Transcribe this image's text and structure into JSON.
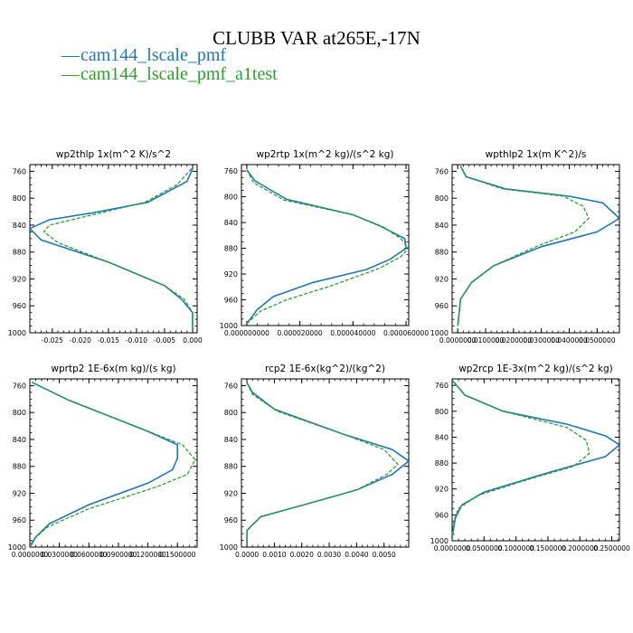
{
  "figure": {
    "title": "CLUBB VAR at265E,-17N",
    "legend": [
      {
        "name": "cam144_lscale_pmf",
        "color": "#1f77b4",
        "style": "solid"
      },
      {
        "name": "cam144_lscale_pmf_a1test",
        "color": "#2ca02c",
        "style": "dashed"
      }
    ]
  },
  "chart_data": [
    {
      "type": "line",
      "title": "wp2thlp   1x(m^2 K)/s^2",
      "y_ticks": [
        760,
        800,
        840,
        880,
        920,
        960,
        1000
      ],
      "ylim": [
        1000,
        750
      ],
      "xlim": [
        -0.029,
        0.0008
      ],
      "x_ticks": [
        -0.025,
        -0.02,
        -0.015,
        -0.01,
        -0.005,
        0.0
      ],
      "x_tick_labels": [
        "-0.025",
        "-0.020",
        "-0.015",
        "-0.010",
        "-0.005",
        "0.000"
      ],
      "series": [
        {
          "name": "cam144_lscale_pmf",
          "color": "#1f77b4",
          "dash": false,
          "x": [
            0.0,
            -0.001,
            -0.008,
            -0.018,
            -0.0255,
            -0.029,
            -0.027,
            -0.015,
            -0.005,
            -0.002,
            0.0,
            0.0
          ],
          "y": [
            756,
            775,
            806,
            822,
            832,
            845,
            862,
            895,
            930,
            950,
            970,
            995
          ]
        },
        {
          "name": "cam144_lscale_pmf_a1test",
          "color": "#2ca02c",
          "dash": true,
          "x": [
            -0.0002,
            -0.0028,
            -0.0085,
            -0.018,
            -0.0255,
            -0.0265,
            -0.024,
            -0.015,
            -0.005,
            -0.0015,
            0.0,
            0.0
          ],
          "y": [
            756,
            780,
            806,
            825,
            840,
            850,
            866,
            895,
            930,
            950,
            970,
            995
          ]
        }
      ]
    },
    {
      "type": "line",
      "title": "wp2rtp   1x(m^2 kg)/(s^2 kg)",
      "y_ticks": [
        760,
        800,
        840,
        880,
        920,
        960,
        1000
      ],
      "ylim": [
        1000,
        750
      ],
      "xlim": [
        -2e-06,
        6.1e-05
      ],
      "x_ticks": [
        0.0,
        2e-05,
        4e-05,
        6e-05
      ],
      "x_tick_labels": [
        "0.000000000",
        "0.000020000",
        "0.000040000",
        "0.000060000"
      ],
      "series": [
        {
          "name": "cam144_lscale_pmf",
          "color": "#1f77b4",
          "dash": false,
          "x": [
            0.0,
            3e-06,
            1.5e-05,
            4e-05,
            5e-05,
            5.95e-05,
            6e-05,
            5.4e-05,
            4.5e-05,
            2.5e-05,
            1e-05,
            4e-06,
            0.0
          ],
          "y": [
            758,
            775,
            804,
            828,
            845,
            865,
            880,
            897,
            913,
            933,
            955,
            975,
            997
          ]
        },
        {
          "name": "cam144_lscale_pmf_a1test",
          "color": "#2ca02c",
          "dash": true,
          "x": [
            0.0,
            2.5e-06,
            1.4e-05,
            4e-05,
            5.15e-05,
            5.8e-05,
            6.1e-05,
            5.8e-05,
            5e-05,
            3.2e-05,
            1.5e-05,
            5e-06,
            0.0
          ],
          "y": [
            758,
            778,
            805,
            828,
            847,
            865,
            880,
            893,
            911,
            938,
            960,
            978,
            997
          ]
        }
      ]
    },
    {
      "type": "line",
      "title": "wpthlp2   1x(m K^2)/s",
      "y_ticks": [
        760,
        800,
        840,
        880,
        920,
        960,
        1000
      ],
      "ylim": [
        1000,
        750
      ],
      "xlim": [
        -0.002,
        0.058
      ],
      "x_ticks": [
        0.0,
        0.01,
        0.02,
        0.03,
        0.04,
        0.05
      ],
      "x_tick_labels": [
        "0.0000000",
        "0.0100000",
        "0.0200000",
        "0.0300000",
        "0.0400000",
        "0.0500000"
      ],
      "series": [
        {
          "name": "cam144_lscale_pmf",
          "color": "#1f77b4",
          "dash": false,
          "x": [
            0.001,
            0.003,
            0.017,
            0.04,
            0.052,
            0.058,
            0.05,
            0.03,
            0.013,
            0.005,
            0.001,
            0.0
          ],
          "y": [
            752,
            768,
            786,
            797,
            807,
            830,
            850,
            872,
            900,
            925,
            950,
            990
          ]
        },
        {
          "name": "cam144_lscale_pmf_a1test",
          "color": "#2ca02c",
          "dash": true,
          "x": [
            0.001,
            0.003,
            0.016,
            0.038,
            0.045,
            0.047,
            0.042,
            0.028,
            0.013,
            0.005,
            0.001,
            0.0
          ],
          "y": [
            752,
            768,
            786,
            797,
            812,
            830,
            850,
            872,
            900,
            925,
            950,
            990
          ]
        }
      ]
    },
    {
      "type": "line",
      "title": "wprtp2   1E-6x(m kg)/(s kg)",
      "y_ticks": [
        760,
        800,
        840,
        880,
        920,
        960,
        1000
      ],
      "ylim": [
        1000,
        750
      ],
      "xlim": [
        0.0,
        0.17
      ],
      "x_ticks": [
        0.0,
        0.03,
        0.06,
        0.09,
        0.12,
        0.15
      ],
      "x_tick_labels": [
        "0.0000000",
        "0.0300000",
        "0.0600000",
        "0.0900000",
        "0.1200000",
        "0.1500000"
      ],
      "series": [
        {
          "name": "cam144_lscale_pmf",
          "color": "#1f77b4",
          "dash": false,
          "x": [
            0.002,
            0.04,
            0.12,
            0.15,
            0.15,
            0.145,
            0.12,
            0.06,
            0.02,
            0.006,
            0.001
          ],
          "y": [
            755,
            782,
            828,
            848,
            868,
            885,
            905,
            937,
            965,
            985,
            998
          ]
        },
        {
          "name": "cam144_lscale_pmf_a1test",
          "color": "#2ca02c",
          "dash": true,
          "x": [
            0.002,
            0.04,
            0.12,
            0.155,
            0.168,
            0.16,
            0.13,
            0.06,
            0.018,
            0.004,
            0.0
          ],
          "y": [
            755,
            782,
            828,
            848,
            870,
            892,
            910,
            943,
            970,
            988,
            998
          ]
        }
      ]
    },
    {
      "type": "line",
      "title": "rcp2   1E-6x(kg^2)/(kg^2)",
      "y_ticks": [
        760,
        800,
        840,
        880,
        920,
        960,
        1000
      ],
      "ylim": [
        1000,
        750
      ],
      "xlim": [
        -0.0002,
        0.0059
      ],
      "x_ticks": [
        0.0,
        0.001,
        0.002,
        0.003,
        0.004,
        0.005
      ],
      "x_tick_labels": [
        "0.0000",
        "0.0010",
        "0.0020",
        "0.0030",
        "0.0040",
        "0.0050"
      ],
      "series": [
        {
          "name": "cam144_lscale_pmf",
          "color": "#1f77b4",
          "dash": false,
          "x": [
            0.0,
            0.0002,
            0.001,
            0.0035,
            0.0053,
            0.0059,
            0.0053,
            0.004,
            0.002,
            0.0005,
            0.0,
            0.0
          ],
          "y": [
            756,
            770,
            795,
            832,
            855,
            872,
            892,
            915,
            938,
            955,
            975,
            995
          ]
        },
        {
          "name": "cam144_lscale_pmf_a1test",
          "color": "#2ca02c",
          "dash": true,
          "x": [
            0.0,
            0.0002,
            0.0011,
            0.0035,
            0.005,
            0.0055,
            0.0051,
            0.004,
            0.002,
            0.0005,
            0.0,
            0.0
          ],
          "y": [
            756,
            773,
            798,
            832,
            855,
            877,
            892,
            915,
            938,
            955,
            975,
            995
          ]
        }
      ]
    },
    {
      "type": "line",
      "title": "wp2rcp   1E-3x(m^2 kg)/(s^2 kg)",
      "y_ticks": [
        760,
        800,
        840,
        880,
        920,
        960,
        1000
      ],
      "ylim": [
        1000,
        750
      ],
      "xlim": [
        0.0,
        0.262
      ],
      "x_ticks": [
        0.0,
        0.05,
        0.1,
        0.15,
        0.2,
        0.25
      ],
      "x_tick_labels": [
        "0.0000000",
        "0.0500000",
        "0.1000000",
        "0.1500000",
        "0.2000000",
        "0.2500000"
      ],
      "series": [
        {
          "name": "cam144_lscale_pmf",
          "color": "#1f77b4",
          "dash": false,
          "x": [
            0.0,
            0.02,
            0.08,
            0.18,
            0.24,
            0.262,
            0.24,
            0.15,
            0.05,
            0.015,
            0.005,
            0.0
          ],
          "y": [
            752,
            775,
            800,
            820,
            838,
            852,
            870,
            895,
            925,
            945,
            965,
            995
          ]
        },
        {
          "name": "cam144_lscale_pmf_a1test",
          "color": "#2ca02c",
          "dash": true,
          "x": [
            0.0,
            0.02,
            0.08,
            0.18,
            0.21,
            0.215,
            0.19,
            0.12,
            0.04,
            0.01,
            0.003,
            0.0
          ],
          "y": [
            752,
            775,
            800,
            825,
            845,
            865,
            885,
            905,
            930,
            950,
            968,
            995
          ]
        }
      ]
    }
  ]
}
